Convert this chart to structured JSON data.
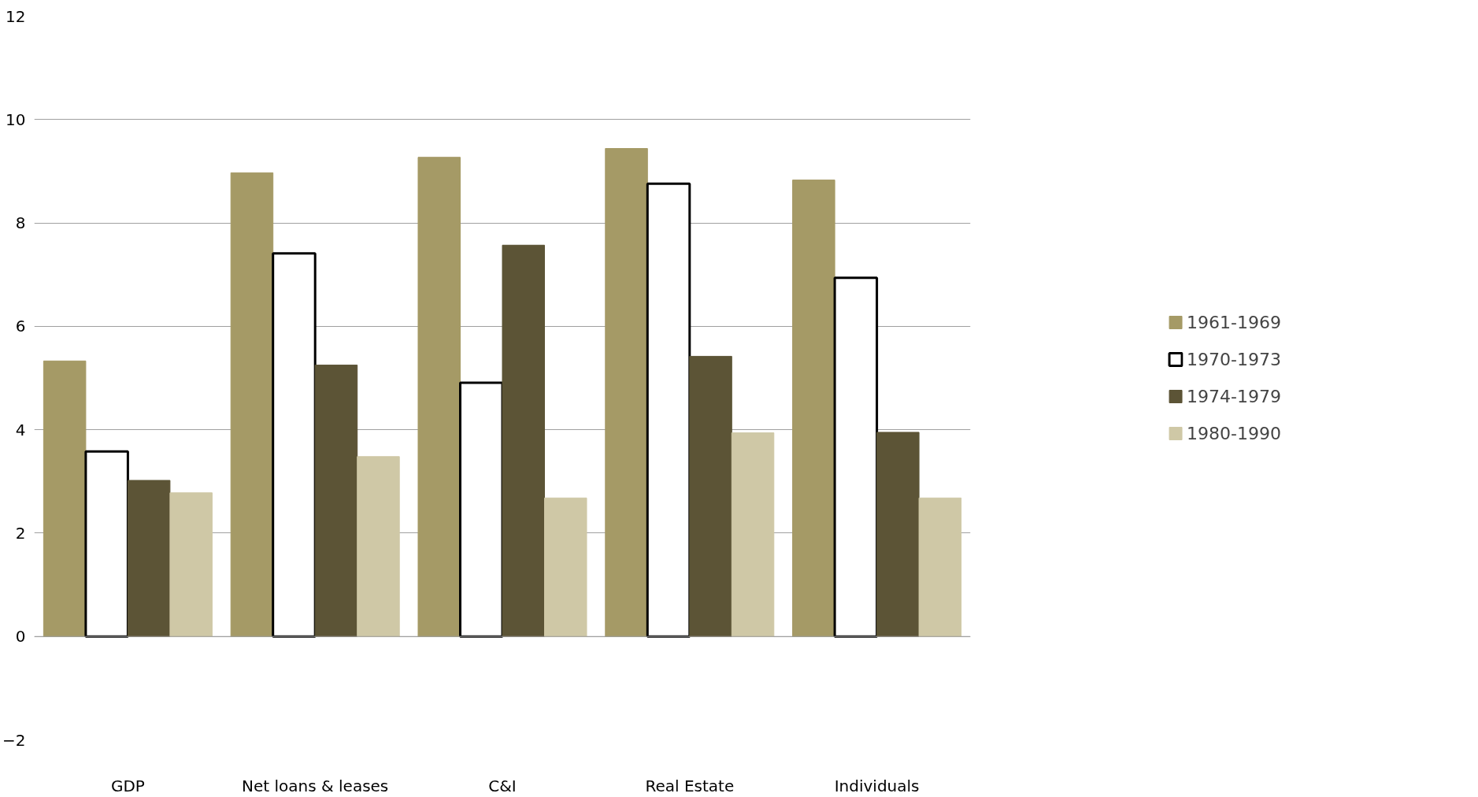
{
  "chart_data": {
    "type": "bar",
    "categories": [
      "GDP",
      "Net loans & leases",
      "C&I",
      "Real Estate",
      "Individuals"
    ],
    "series": [
      {
        "name": "1961-1969",
        "color": "#a59a66",
        "values": [
          5.33,
          8.97,
          9.27,
          9.44,
          8.83
        ]
      },
      {
        "name": "1970-1973",
        "color": "#ffffff",
        "values": [
          3.58,
          7.41,
          4.91,
          8.76,
          6.94
        ]
      },
      {
        "name": "1974-1979",
        "color": "#5c5436",
        "values": [
          3.02,
          5.25,
          7.57,
          5.42,
          3.95
        ]
      },
      {
        "name": "1980-1990",
        "color": "#cfc8a6",
        "values": [
          2.78,
          3.48,
          2.68,
          3.94,
          2.68
        ]
      }
    ],
    "ylim": [
      -2,
      12
    ],
    "yticks": [
      -2,
      0,
      2,
      4,
      6,
      8,
      10,
      12
    ],
    "grid": "y",
    "legend": "right"
  }
}
